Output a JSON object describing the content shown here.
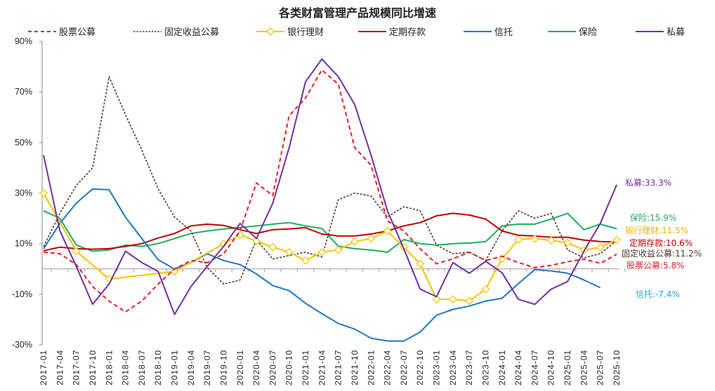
{
  "chart_data": {
    "type": "line",
    "title": "各类财富管理产品规模同比增速",
    "xlabel": "",
    "ylabel": "",
    "ylim": [
      -30,
      90
    ],
    "yticks": [
      "90%",
      "70%",
      "50%",
      "30%",
      "10%",
      "-10%",
      "-30%"
    ],
    "ytick_values": [
      90,
      70,
      50,
      30,
      10,
      -10,
      -30
    ],
    "grid": false,
    "legend_position": "top",
    "categories": [
      "2017-01",
      "2017-04",
      "2017-07",
      "2017-10",
      "2018-01",
      "2018-04",
      "2018-07",
      "2018-10",
      "2019-01",
      "2019-04",
      "2019-07",
      "2019-10",
      "2020-01",
      "2020-04",
      "2020-07",
      "2020-10",
      "2021-01",
      "2021-04",
      "2021-07",
      "2021-10",
      "2022-01",
      "2022-04",
      "2022-07",
      "2022-10",
      "2023-01",
      "2023-04",
      "2023-07",
      "2023-10",
      "2024-01",
      "2024-04",
      "2024-07",
      "2024-10",
      "2025-01",
      "2025-04",
      "2025-07",
      "2025-10"
    ],
    "series": [
      {
        "name": "股票公募",
        "color": "#e8202a",
        "style": "dashed",
        "end_label": "股票公募:5.8%",
        "values": [
          6.6,
          6,
          1.7,
          -7,
          -12.7,
          -17,
          -12.7,
          -6,
          0,
          3.3,
          2.5,
          6,
          15,
          34,
          29,
          60.6,
          67.6,
          78.7,
          73,
          48,
          41,
          19,
          15,
          8,
          2,
          4,
          6.6,
          3.3,
          5,
          2.5,
          0.5,
          1.4,
          2.8,
          3.9,
          2.2,
          5.8
        ]
      },
      {
        "name": "固定收益公募",
        "color": "#5a3a2a",
        "style": "dotted",
        "end_label": "固定收益公募:11.2%",
        "values": [
          8.8,
          22,
          33,
          40,
          76,
          61,
          47,
          31.6,
          20.5,
          15,
          0.5,
          -6,
          -4.4,
          11.6,
          3.9,
          5.3,
          6.6,
          4.7,
          27.4,
          30,
          28.8,
          20.5,
          24.6,
          23,
          9.4,
          6,
          6.6,
          3.3,
          15,
          23,
          20,
          22,
          7.5,
          4.4,
          6,
          11.2
        ]
      },
      {
        "name": "银行理财",
        "color": "#f5c400",
        "style": "marker",
        "end_label": "银行理财:11.5%",
        "values": [
          30,
          null,
          7,
          null,
          -4,
          null,
          null,
          null,
          -1,
          null,
          null,
          10,
          13.5,
          11,
          8.6,
          6.6,
          3.3,
          6.6,
          7.5,
          10.8,
          12,
          15,
          8.6,
          2,
          -12,
          -12,
          -12.7,
          -8,
          4,
          11.6,
          12,
          11.3,
          10.3,
          7.5,
          8.5,
          11.5
        ]
      },
      {
        "name": "定期存款",
        "color": "#c00000",
        "style": "solid",
        "end_label": "定期存款:10.6%",
        "values": [
          7.2,
          8.6,
          8,
          7.8,
          8,
          8.9,
          10,
          12.2,
          14,
          17,
          17.7,
          17.2,
          15.5,
          14,
          15.5,
          15.8,
          16.3,
          13.8,
          13,
          13,
          13.8,
          15,
          17,
          18.3,
          21,
          22,
          21.3,
          19.7,
          15,
          13.3,
          13,
          12.5,
          12.5,
          11.4,
          10.8,
          10.6
        ]
      },
      {
        "name": "信托",
        "color": "#1f78c1",
        "style": "solid",
        "end_label": "信托:-7.4%",
        "values": [
          8,
          18,
          26,
          31.6,
          31.3,
          20.5,
          12,
          3.6,
          0,
          2.5,
          6,
          3.3,
          1.7,
          -2,
          -6.6,
          -8.6,
          -13.6,
          -17.7,
          -21.6,
          -23.8,
          -27.4,
          -28.5,
          -28.5,
          -25,
          -18.3,
          -16,
          -14.7,
          -12.7,
          -11.6,
          -5.8,
          -0.3,
          -0.8,
          -1.7,
          -4.4,
          -7.4,
          null
        ]
      },
      {
        "name": "保险",
        "color": "#1fae5f",
        "style": "solid",
        "end_label": "保险:15.9%",
        "values": [
          23,
          20,
          9.4,
          7,
          7.5,
          9.4,
          8.9,
          10,
          12,
          14,
          15,
          15.8,
          16.3,
          17,
          17.7,
          18.3,
          17,
          16,
          9,
          8,
          7.5,
          6.6,
          11.6,
          10,
          9.4,
          10,
          10.2,
          10.8,
          17,
          17.7,
          17.7,
          19.7,
          22,
          15.5,
          17.7,
          15.9
        ]
      },
      {
        "name": "私募",
        "color": "#7030a0",
        "style": "solid",
        "end_label": "私募:33.3%",
        "values": [
          45,
          15,
          1,
          -14,
          -6,
          7,
          2.5,
          -1,
          -18,
          -7,
          1,
          9,
          18,
          12,
          26,
          48,
          74,
          83,
          76,
          65,
          45,
          23,
          8,
          -8,
          -11,
          2.5,
          -1.7,
          3,
          -1.5,
          -12,
          -14,
          -8,
          -5,
          7,
          18,
          33.3
        ]
      }
    ]
  }
}
